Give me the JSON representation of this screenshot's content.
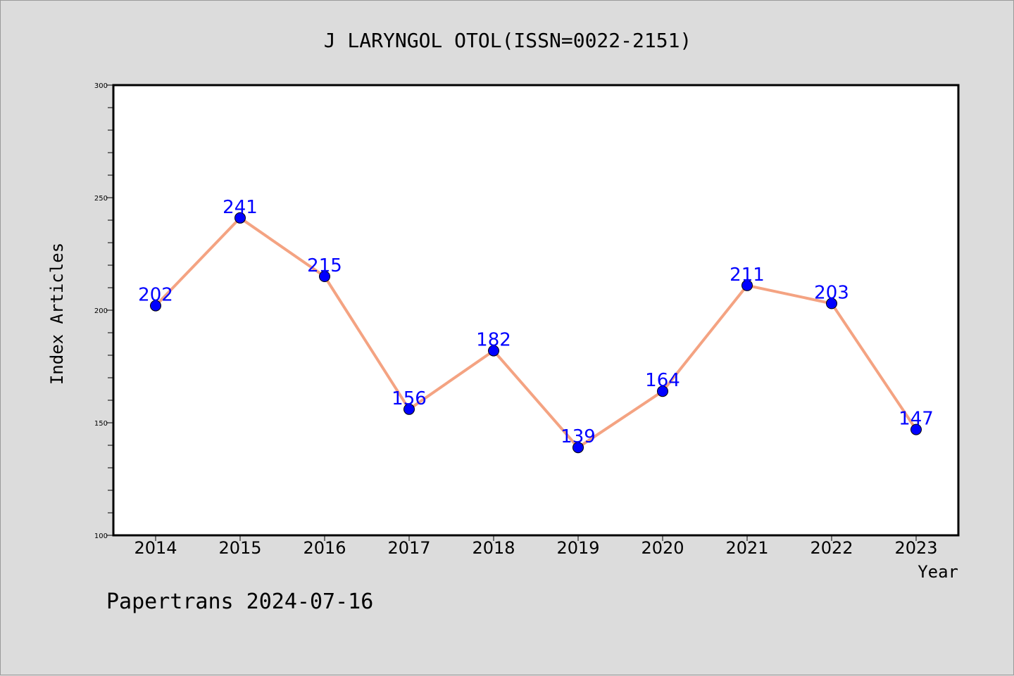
{
  "chart_data": {
    "type": "line",
    "title": "J LARYNGOL OTOL(ISSN=0022-2151)",
    "xlabel": "Year",
    "ylabel": "Index Articles",
    "categories": [
      "2014",
      "2015",
      "2016",
      "2017",
      "2018",
      "2019",
      "2020",
      "2021",
      "2022",
      "2023"
    ],
    "values": [
      202,
      241,
      215,
      156,
      182,
      139,
      164,
      211,
      203,
      147
    ],
    "data_labels": [
      "202",
      "241",
      "215",
      "156",
      "182",
      "139",
      "164",
      "211",
      "203",
      "147"
    ],
    "ylim": [
      100,
      300
    ],
    "yticks": [
      "100",
      "150",
      "200",
      "250",
      "300"
    ],
    "grid": false,
    "line_color": "#f4a382",
    "marker_color": "#0000ff",
    "label_color": "#0000ff"
  },
  "footer": "Papertrans 2024-07-16"
}
